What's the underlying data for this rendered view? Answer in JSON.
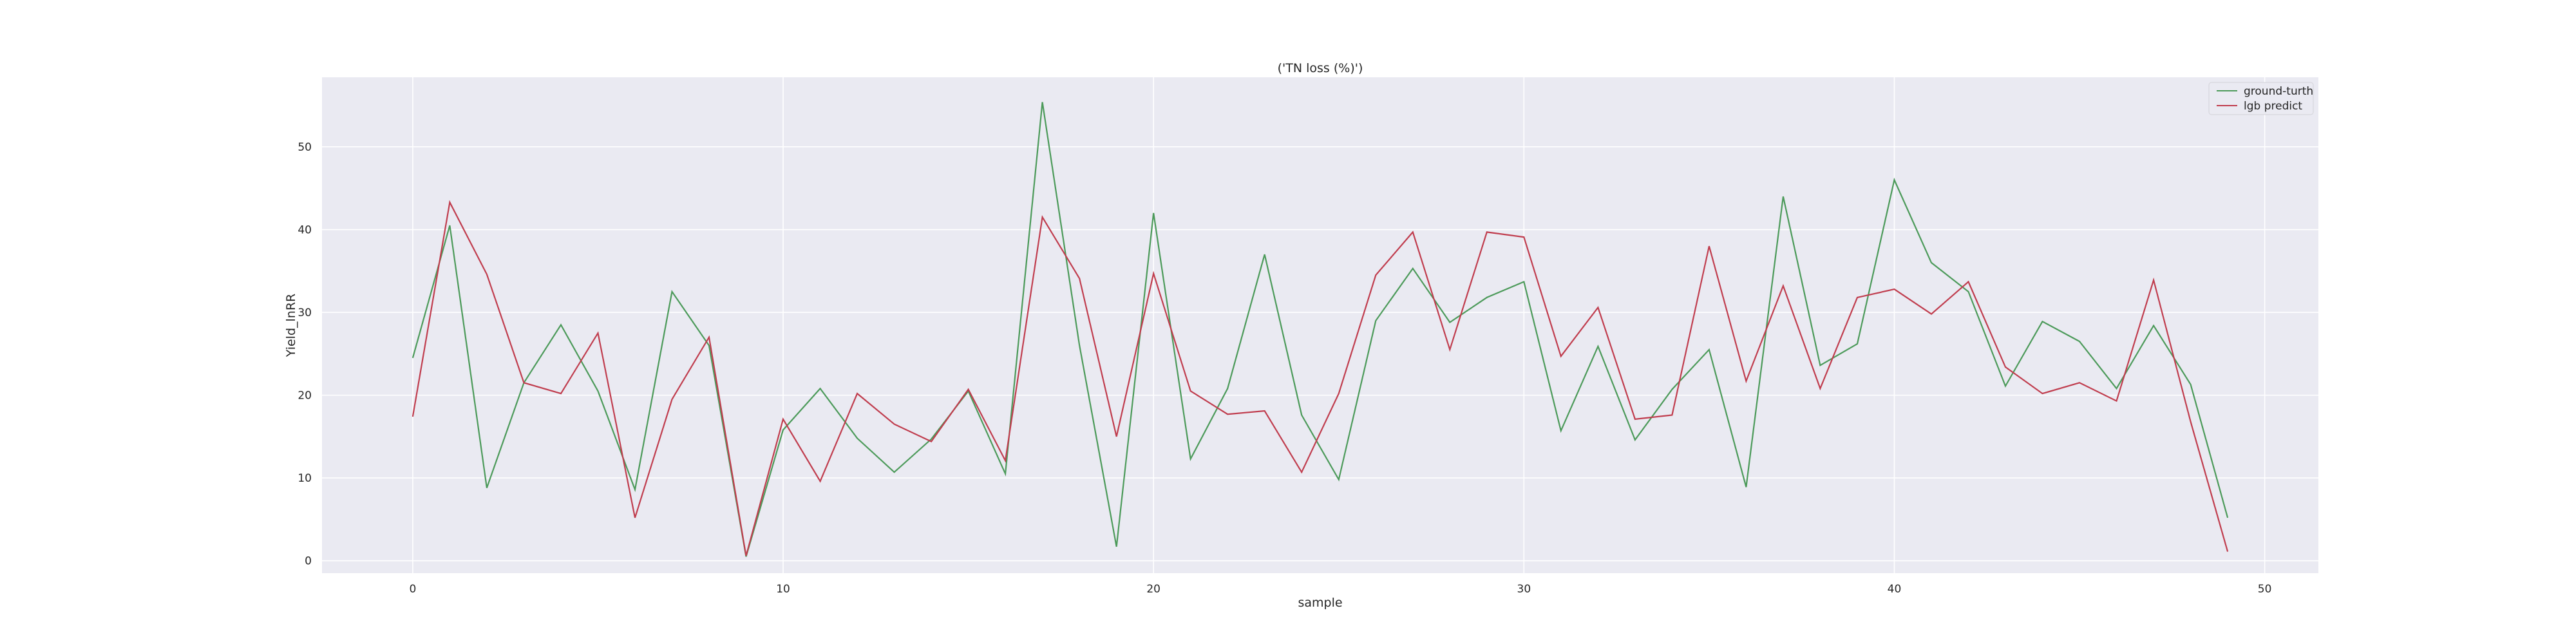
{
  "chart_data": {
    "type": "line",
    "title": "('TN loss (%)')",
    "xlabel": "sample",
    "ylabel": "Yield_lnRR",
    "xlim": [
      -2.45,
      51.45
    ],
    "ylim": [
      -1.5,
      58.4
    ],
    "xticks": [
      0,
      10,
      20,
      30,
      40,
      50
    ],
    "yticks": [
      0,
      10,
      20,
      30,
      40,
      50
    ],
    "grid": true,
    "legend_position": "top-right",
    "background": "#eaeaf2",
    "series": [
      {
        "name": "ground-turth",
        "color": "#4c9a5a",
        "x": [
          0,
          1,
          2,
          3,
          4,
          5,
          6,
          7,
          8,
          9,
          10,
          11,
          12,
          13,
          14,
          15,
          16,
          17,
          18,
          19,
          20,
          21,
          22,
          23,
          24,
          25,
          26,
          27,
          28,
          29,
          30,
          31,
          32,
          33,
          34,
          35,
          36,
          37,
          38,
          39,
          40,
          41,
          42,
          43,
          44,
          45,
          46,
          47,
          48,
          49
        ],
        "values": [
          24.5,
          40.5,
          8.8,
          21.5,
          28.5,
          20.5,
          8.6,
          32.5,
          26.0,
          0.5,
          15.8,
          20.8,
          14.8,
          10.7,
          14.7,
          20.5,
          10.5,
          55.4,
          26.0,
          1.7,
          42.0,
          12.3,
          20.8,
          37.0,
          17.6,
          9.8,
          29.0,
          35.3,
          28.8,
          31.8,
          33.7,
          15.7,
          25.9,
          14.6,
          20.7,
          25.5,
          8.9,
          44.0,
          23.6,
          26.2,
          46.0,
          36.0,
          32.5,
          21.1,
          28.9,
          26.5,
          20.8,
          28.4,
          21.3,
          5.2
        ]
      },
      {
        "name": "lgb predict",
        "color": "#c03d4e",
        "x": [
          0,
          1,
          2,
          3,
          4,
          5,
          6,
          7,
          8,
          9,
          10,
          11,
          12,
          13,
          14,
          15,
          16,
          17,
          18,
          19,
          20,
          21,
          22,
          23,
          24,
          25,
          26,
          27,
          28,
          29,
          30,
          31,
          32,
          33,
          34,
          35,
          36,
          37,
          38,
          39,
          40,
          41,
          42,
          43,
          44,
          45,
          46,
          47,
          48,
          49
        ],
        "values": [
          17.4,
          43.3,
          34.6,
          21.5,
          20.2,
          27.5,
          5.2,
          19.5,
          27.0,
          0.6,
          17.1,
          9.6,
          20.2,
          16.5,
          14.4,
          20.7,
          12.1,
          41.5,
          34.1,
          15.0,
          34.7,
          20.5,
          17.7,
          18.1,
          10.7,
          20.2,
          34.5,
          39.7,
          25.5,
          39.7,
          39.1,
          24.7,
          30.6,
          17.1,
          17.6,
          38.0,
          21.7,
          33.2,
          20.8,
          31.8,
          32.8,
          29.8,
          33.7,
          23.4,
          20.2,
          21.5,
          19.3,
          33.9,
          16.8,
          1.1
        ]
      }
    ]
  }
}
